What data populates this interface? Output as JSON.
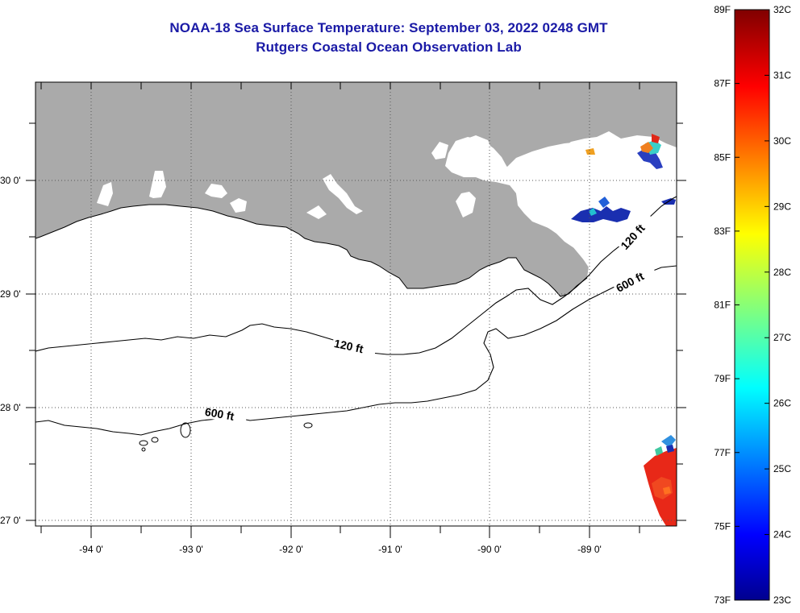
{
  "header": {
    "title": "NOAA-18 Sea Surface Temperature:  September 03, 2022 0248 GMT",
    "subtitle": "Rutgers Coastal Ocean Observation Lab"
  },
  "map": {
    "lat_labels": [
      "30 0'",
      "29 0'",
      "28 0'",
      "27 0'"
    ],
    "lon_labels": [
      "-94 0'",
      "-93 0'",
      "-92 0'",
      "-91 0'",
      "-90 0'",
      "-89 0'"
    ],
    "contours": [
      {
        "label": "120 ft",
        "depth_ft": 120
      },
      {
        "label": "600 ft",
        "depth_ft": 600
      },
      {
        "label": "120 ft",
        "depth_ft": 120
      },
      {
        "label": "600 ft",
        "depth_ft": 600
      }
    ],
    "colors": {
      "land": "#aaaaaa",
      "water": "#ffffff",
      "gridline": "#000000"
    }
  },
  "colorbar": {
    "fahrenheit_labels": [
      "89F",
      "87F",
      "85F",
      "83F",
      "81F",
      "79F",
      "77F",
      "75F",
      "73F"
    ],
    "celsius_labels": [
      "32C",
      "31C",
      "30C",
      "29C",
      "28C",
      "27C",
      "26C",
      "25C",
      "24C",
      "23C"
    ],
    "range_c": [
      23,
      32
    ],
    "range_f": [
      73,
      89
    ]
  }
}
